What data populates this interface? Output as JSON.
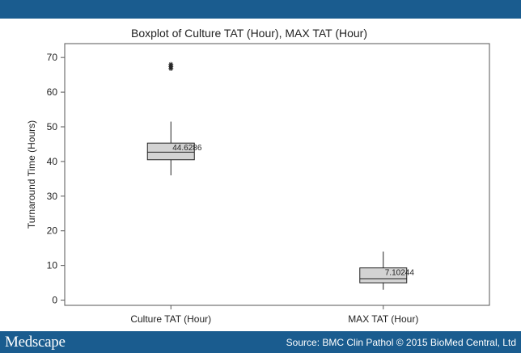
{
  "chart_data": {
    "type": "boxplot",
    "title": "Boxplot of Culture TAT (Hour), MAX TAT (Hour)",
    "xlabel": "",
    "ylabel": "Turnaround Time (Hours)",
    "ylim": [
      -1.5,
      74
    ],
    "y_ticks": [
      0,
      10,
      20,
      30,
      40,
      50,
      60,
      70
    ],
    "grid": false,
    "categories": [
      "Culture TAT (Hour)",
      "MAX TAT (Hour)"
    ],
    "boxes": [
      {
        "category": "Culture TAT (Hour)",
        "whisker_low": 36.0,
        "q1": 40.5,
        "median": 42.7,
        "q3": 45.3,
        "whisker_high": 51.5,
        "mean_label": "44.6286",
        "outliers": [
          66.8,
          67.4,
          68.0
        ]
      },
      {
        "category": "MAX TAT (Hour)",
        "whisker_low": 3.0,
        "q1": 5.0,
        "median": 6.2,
        "q3": 9.3,
        "whisker_high": 14.0,
        "mean_label": "7.10244",
        "outliers": []
      }
    ],
    "box_fill": "#d3d3d3",
    "line_color": "#222222"
  },
  "footer": {
    "brand": "Medscape",
    "source": "Source: BMC Clin Pathol © 2015 BioMed Central, Ltd"
  },
  "colors": {
    "bar": "#1a5c8f"
  }
}
